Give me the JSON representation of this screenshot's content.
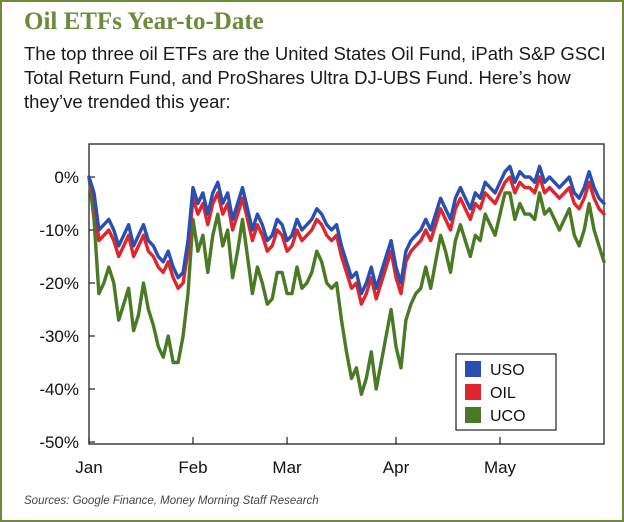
{
  "title": "Oil ETFs Year-to-Date",
  "subtitle": "The top three oil ETFs are the United States Oil Fund, iPath S&P GSCI Total Return Fund, and ProShares Ultra DJ-UBS Fund. Here’s how they’ve trended this year:",
  "source": "Sources: Google Finance, Money Morning Staff Research",
  "colors": {
    "accent": "#6b8a3a",
    "USO": "#2b4fb0",
    "OIL": "#e0262d",
    "UCO": "#4b7a25"
  },
  "chart_data": {
    "type": "line",
    "title": "Oil ETFs Year-to-Date",
    "xlabel": "",
    "ylabel": "",
    "x_tick_labels": [
      "Jan",
      "Feb",
      "Mar",
      "Apr",
      "May"
    ],
    "x_tick_index": [
      0,
      21,
      40,
      62,
      83
    ],
    "y_ticks": [
      0,
      -10,
      -20,
      -30,
      -40,
      -50
    ],
    "y_tick_labels": [
      "0%",
      "-10%",
      "-20%",
      "-30%",
      "-40%",
      "-50%"
    ],
    "ylim": [
      -50,
      2
    ],
    "grid": false,
    "legend_position": "bottom-right",
    "series": [
      {
        "name": "USO",
        "values": [
          0,
          -3,
          -10,
          -9,
          -8,
          -10,
          -13,
          -11,
          -9,
          -13,
          -11,
          -9,
          -12,
          -13,
          -15,
          -16,
          -14,
          -17,
          -19,
          -18,
          -12,
          -2,
          -5,
          -3,
          -7,
          -3,
          -1,
          -5,
          -3,
          -8,
          -5,
          -2,
          -6,
          -10,
          -7,
          -9,
          -12,
          -11,
          -8,
          -9,
          -12,
          -11,
          -8,
          -10,
          -9,
          -8,
          -6,
          -7,
          -9,
          -10,
          -9,
          -13,
          -16,
          -19,
          -18,
          -22,
          -20,
          -17,
          -21,
          -18,
          -15,
          -12,
          -17,
          -20,
          -14,
          -12,
          -11,
          -10,
          -8,
          -10,
          -7,
          -4,
          -6,
          -8,
          -4,
          -2,
          -4,
          -6,
          -3,
          -4,
          -1,
          -2,
          -3,
          -1,
          1,
          2,
          -1,
          1,
          0,
          0,
          -1,
          2,
          -1,
          0,
          -1,
          -2,
          -1,
          0,
          -3,
          -4,
          -2,
          1,
          -2,
          -4,
          -5
        ]
      },
      {
        "name": "OIL",
        "values": [
          0,
          -4,
          -12,
          -11,
          -10,
          -12,
          -15,
          -13,
          -11,
          -15,
          -13,
          -11,
          -14,
          -15,
          -17,
          -18,
          -16,
          -19,
          -21,
          -20,
          -14,
          -4,
          -7,
          -5,
          -9,
          -5,
          -3,
          -7,
          -5,
          -10,
          -7,
          -4,
          -8,
          -12,
          -9,
          -11,
          -14,
          -13,
          -10,
          -11,
          -14,
          -13,
          -10,
          -12,
          -11,
          -10,
          -8,
          -9,
          -11,
          -12,
          -11,
          -15,
          -18,
          -21,
          -20,
          -24,
          -22,
          -19,
          -23,
          -20,
          -17,
          -14,
          -19,
          -22,
          -16,
          -14,
          -13,
          -12,
          -10,
          -12,
          -9,
          -6,
          -8,
          -10,
          -6,
          -4,
          -6,
          -8,
          -5,
          -6,
          -3,
          -4,
          -5,
          -3,
          -1,
          0,
          -3,
          -1,
          -2,
          -2,
          -3,
          0,
          -3,
          -2,
          -3,
          -4,
          -3,
          -2,
          -5,
          -6,
          -4,
          -1,
          -4,
          -6,
          -7
        ]
      },
      {
        "name": "UCO",
        "values": [
          0,
          -8,
          -22,
          -20,
          -17,
          -20,
          -27,
          -24,
          -21,
          -29,
          -26,
          -20,
          -25,
          -28,
          -32,
          -34,
          -30,
          -35,
          -35,
          -30,
          -22,
          -8,
          -14,
          -11,
          -18,
          -11,
          -7,
          -13,
          -10,
          -19,
          -14,
          -8,
          -15,
          -22,
          -17,
          -20,
          -24,
          -23,
          -18,
          -18,
          -22,
          -22,
          -17,
          -21,
          -20,
          -18,
          -14,
          -16,
          -20,
          -21,
          -20,
          -27,
          -33,
          -38,
          -36,
          -41,
          -38,
          -33,
          -40,
          -35,
          -30,
          -25,
          -32,
          -36,
          -27,
          -24,
          -22,
          -21,
          -17,
          -21,
          -16,
          -11,
          -14,
          -18,
          -12,
          -9,
          -12,
          -15,
          -11,
          -12,
          -7,
          -9,
          -11,
          -7,
          -3,
          -3,
          -8,
          -5,
          -7,
          -7,
          -8,
          -3,
          -7,
          -6,
          -8,
          -10,
          -8,
          -6,
          -11,
          -13,
          -10,
          -5,
          -10,
          -13,
          -16
        ]
      }
    ]
  }
}
